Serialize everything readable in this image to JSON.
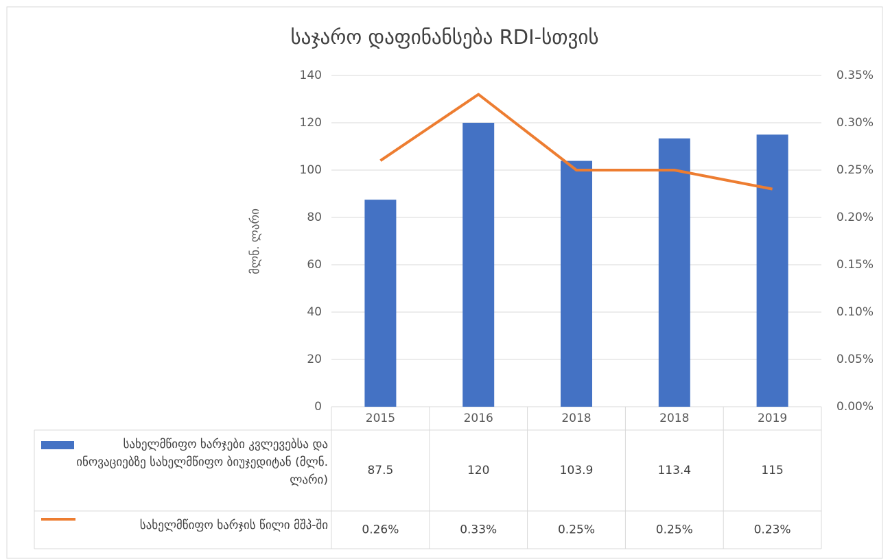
{
  "chart_data": {
    "type": "bar-line",
    "title": "საჯარო დაფინანსება RDI-სთვის",
    "y_label": "მლნ. ლარი",
    "categories": [
      "2015",
      "2016",
      "2018",
      "2018",
      "2019"
    ],
    "series": [
      {
        "name": "სახელმწიფო ხარჯები კვლევებსა და ინოვაციებზე სახელმწიფო ბიუჯედიტან (მლნ. ლარი)",
        "type": "bar",
        "color": "#4472c4",
        "values": [
          87.5,
          120,
          103.9,
          113.4,
          115
        ]
      },
      {
        "name": "სახელმწიფო ხარჯის წილი მშპ-ში",
        "type": "line",
        "axis": "y2",
        "color": "#ed7d31",
        "values": [
          0.26,
          0.33,
          0.25,
          0.25,
          0.23
        ],
        "value_labels": [
          "0.26%",
          "0.33%",
          "0.25%",
          "0.25%",
          "0.23%"
        ]
      }
    ],
    "ylim": [
      0,
      140
    ],
    "yticks": [
      0,
      20,
      40,
      60,
      80,
      100,
      120,
      140
    ],
    "y2lim": [
      0,
      0.35
    ],
    "y2ticks": [
      {
        "value": 0,
        "label": "0.00%"
      },
      {
        "value": 0.05,
        "label": "0.05%"
      },
      {
        "value": 0.1,
        "label": "0.10%"
      },
      {
        "value": 0.15,
        "label": "0.15%"
      },
      {
        "value": 0.2,
        "label": "0.20%"
      },
      {
        "value": 0.25,
        "label": "0.25%"
      },
      {
        "value": 0.3,
        "label": "0.30%"
      },
      {
        "value": 0.35,
        "label": "0.35%"
      }
    ],
    "grid": true
  }
}
